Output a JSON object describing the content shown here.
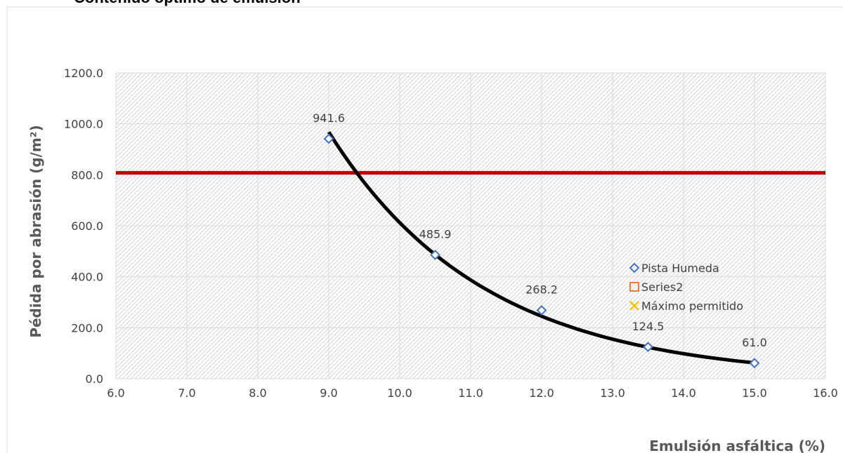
{
  "chart_data": {
    "type": "scatter",
    "title": "Contenido óptimo de emulsión",
    "xlabel": "Emulsión asfáltica (%)",
    "ylabel": "Pédida por abrasión (g/m²)",
    "xlim": [
      6.0,
      16.0
    ],
    "ylim": [
      0.0,
      1200.0
    ],
    "x_ticks": [
      "6.0",
      "7.0",
      "8.0",
      "9.0",
      "10.0",
      "11.0",
      "12.0",
      "13.0",
      "14.0",
      "15.0",
      "16.0"
    ],
    "y_ticks": [
      "0.0",
      "200.0",
      "400.0",
      "600.0",
      "800.0",
      "1000.0",
      "1200.0"
    ],
    "grid": true,
    "legend_position": "right",
    "series": [
      {
        "name": "Pista Humeda",
        "marker": "diamond",
        "color": "#4472C4",
        "x": [
          9.0,
          10.5,
          12.0,
          13.5,
          15.0
        ],
        "y": [
          941.6,
          485.9,
          268.2,
          124.5,
          61.0
        ],
        "labels": [
          "941.6",
          "485.9",
          "268.2",
          "124.5",
          "61.0"
        ]
      },
      {
        "name": "Series2",
        "marker": "square",
        "color": "#ED7D31",
        "x": [],
        "y": []
      },
      {
        "name": "Máximo permitido",
        "marker": "x",
        "color": "#FFC000",
        "x": [],
        "y": []
      }
    ],
    "max_allowed_line": {
      "y": 808.0,
      "color": "#C00000"
    },
    "trendline": {
      "type": "exponential",
      "color": "#000000",
      "x_range": [
        9.0,
        15.0
      ],
      "y_start": 968.0,
      "y_end": 62.0
    }
  }
}
